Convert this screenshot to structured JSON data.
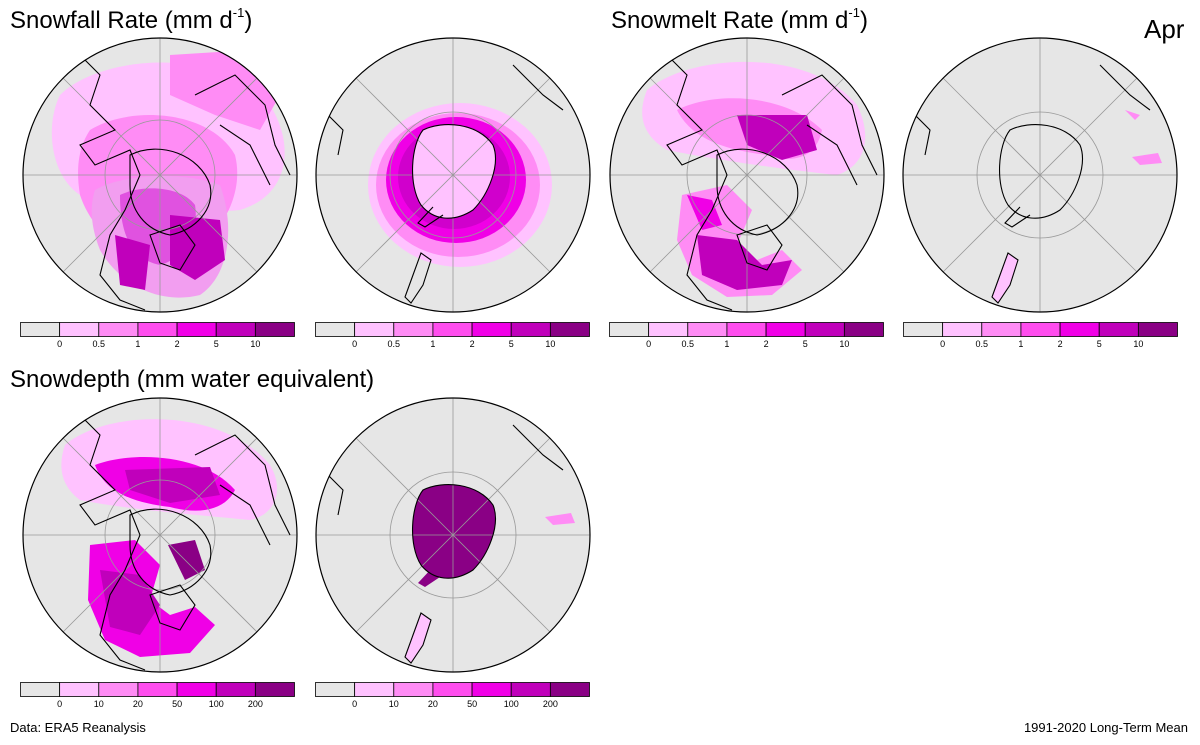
{
  "titles": {
    "snowfall": "Snowfall Rate (mm  d",
    "snowfall_sup": "-1",
    "snowfall_close": ")",
    "snowmelt": "Snowmelt Rate (mm  d",
    "snowmelt_sup": "-1",
    "snowmelt_close": ")",
    "snowdepth": "Snowdepth (mm water equivalent)"
  },
  "month": "Apr",
  "footer": {
    "source": "Data: ERA5 Reanalysis",
    "period": "1991-2020 Long-Term Mean"
  },
  "colorbars": {
    "rate": {
      "colors": [
        "#e6e6e6",
        "#ffc2ff",
        "#ff8cf5",
        "#ff4dee",
        "#f000e6",
        "#c000bb",
        "#8a0085"
      ],
      "labels": [
        "0",
        "0.5",
        "1",
        "2",
        "5",
        "10"
      ]
    },
    "depth": {
      "colors": [
        "#e6e6e6",
        "#ffc2ff",
        "#ff8cf5",
        "#ff4dee",
        "#f000e6",
        "#c000bb",
        "#8a0085"
      ],
      "labels": [
        "0",
        "10",
        "20",
        "50",
        "100",
        "200"
      ]
    }
  },
  "maps": {
    "snowfall_north": "Northern hemisphere snowfall rate",
    "snowfall_south": "Southern hemisphere snowfall rate",
    "snowmelt_north": "Northern hemisphere snowmelt rate",
    "snowmelt_south": "Southern hemisphere snowmelt rate",
    "snowdepth_north": "Northern hemisphere snow depth",
    "snowdepth_south": "Southern hemisphere snow depth"
  }
}
